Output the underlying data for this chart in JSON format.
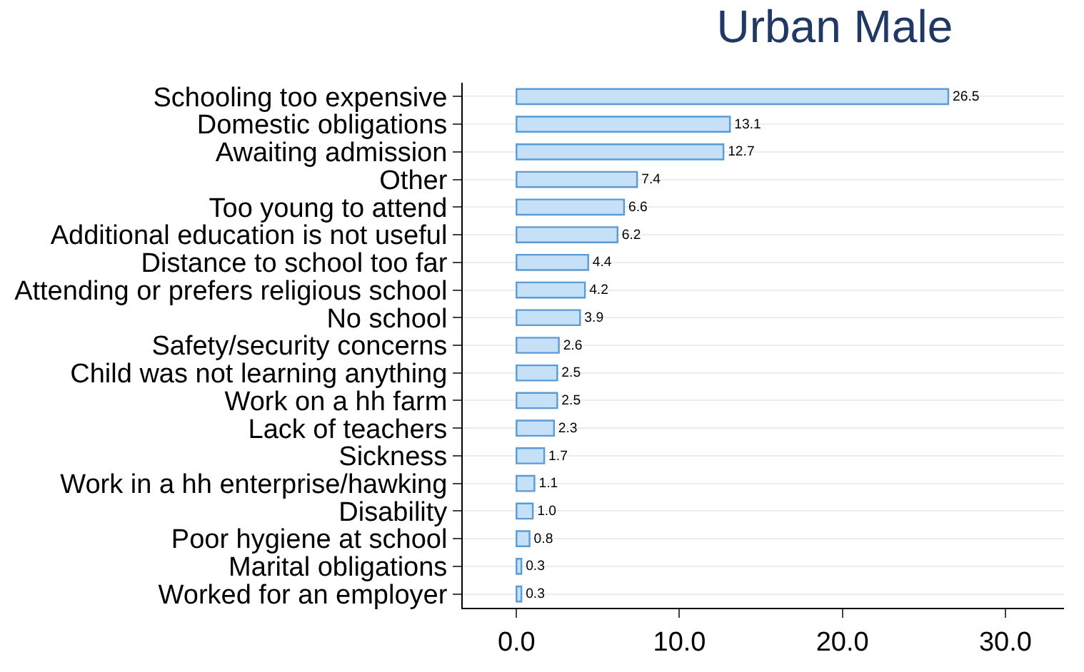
{
  "chart_data": {
    "type": "bar",
    "orientation": "horizontal",
    "title": "Urban Male",
    "categories": [
      "Schooling too expensive",
      "Domestic obligations",
      "Awaiting admission",
      "Other",
      "Too young to attend",
      "Additional education is not useful",
      "Distance to school too far",
      "Attending or prefers religious school",
      "No school",
      "Safety/security concerns",
      "Child was not learning anything",
      "Work on a hh farm",
      "Lack of teachers",
      "Sickness",
      "Work in a hh enterprise/hawking",
      "Disability",
      "Poor hygiene at school",
      "Marital obligations",
      "Worked for an employer"
    ],
    "values": [
      26.5,
      13.1,
      12.7,
      7.4,
      6.6,
      6.2,
      4.4,
      4.2,
      3.9,
      2.6,
      2.5,
      2.5,
      2.3,
      1.7,
      1.1,
      1.0,
      0.8,
      0.3,
      0.3
    ],
    "value_labels": [
      "26.5",
      "13.1",
      "12.7",
      "7.4",
      "6.6",
      "6.2",
      "4.4",
      "4.2",
      "3.9",
      "2.6",
      "2.5",
      "2.5",
      "2.3",
      "1.7",
      "1.1",
      "1.0",
      "0.8",
      "0.3",
      "0.3"
    ],
    "color": "#c6e0f7",
    "xlim": [
      -3.3,
      33.6
    ],
    "xticks": [
      {
        "value": 0,
        "label": "0.0"
      },
      {
        "value": 10,
        "label": "10.0"
      },
      {
        "value": 20,
        "label": "20.0"
      },
      {
        "value": 30,
        "label": "30.0"
      }
    ],
    "grid": "y",
    "legend": false
  }
}
